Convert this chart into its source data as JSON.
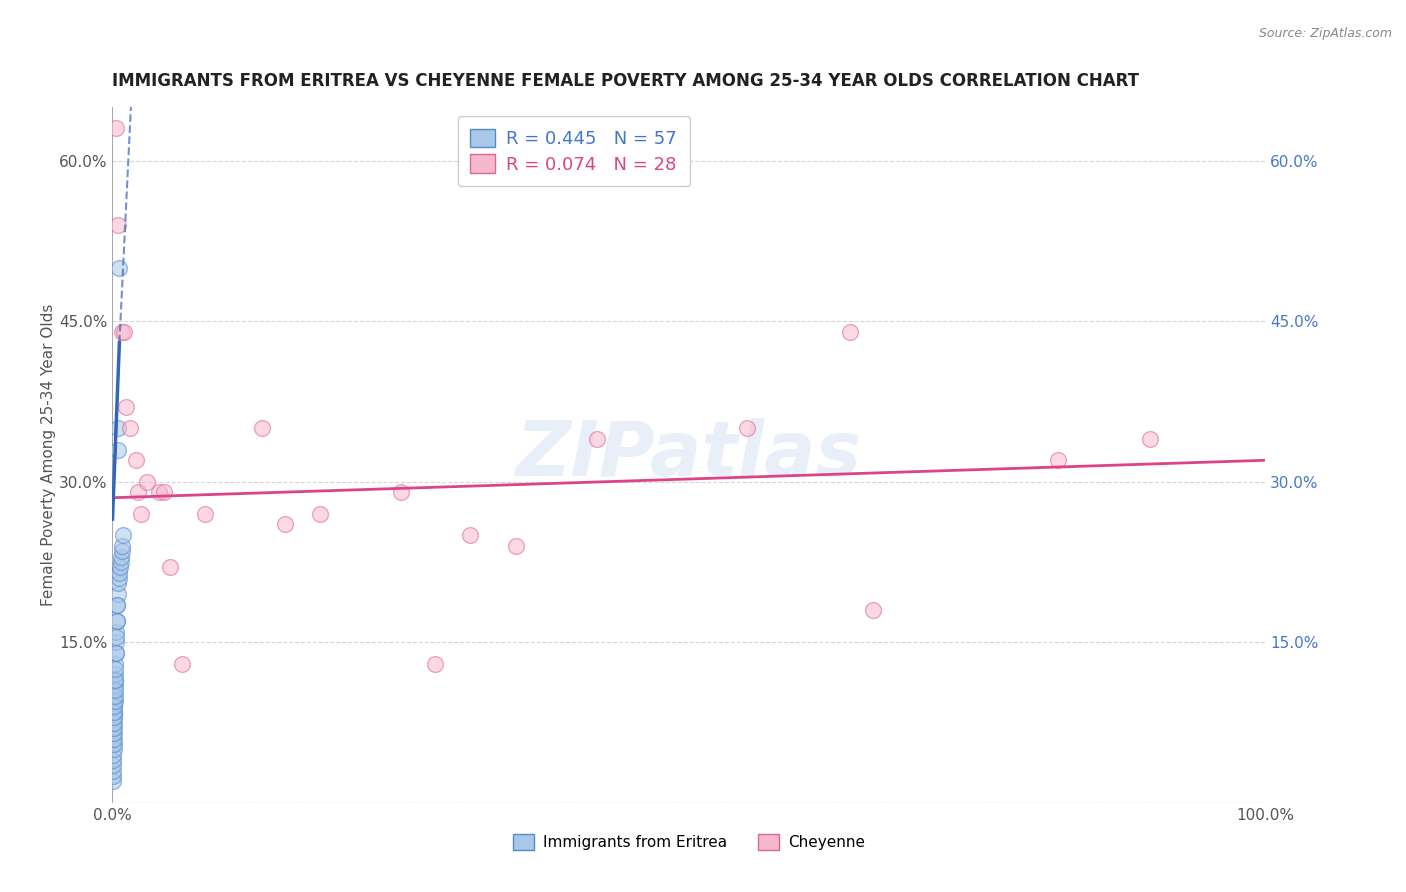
{
  "title": "IMMIGRANTS FROM ERITREA VS CHEYENNE FEMALE POVERTY AMONG 25-34 YEAR OLDS CORRELATION CHART",
  "source": "Source: ZipAtlas.com",
  "ylabel": "Female Poverty Among 25-34 Year Olds",
  "xlim": [
    0,
    1.0
  ],
  "ylim": [
    0,
    0.65
  ],
  "y_ticks": [
    0.0,
    0.15,
    0.3,
    0.45,
    0.6
  ],
  "y_tick_labels": [
    "",
    "15.0%",
    "30.0%",
    "45.0%",
    "60.0%"
  ],
  "x_ticks": [
    0.0,
    0.2,
    0.4,
    0.6,
    0.8,
    1.0
  ],
  "x_tick_labels": [
    "0.0%",
    "",
    "",
    "",
    "",
    "100.0%"
  ],
  "watermark": "ZIPatlas",
  "legend_blue_R": "0.445",
  "legend_blue_N": "57",
  "legend_pink_R": "0.074",
  "legend_pink_N": "28",
  "legend_label_blue": "Immigrants from Eritrea",
  "legend_label_pink": "Cheyenne",
  "blue_color": "#a8c8e8",
  "pink_color": "#f8b8cc",
  "blue_edge_color": "#5588cc",
  "pink_edge_color": "#dd6699",
  "blue_line_color": "#3366bb",
  "pink_line_color": "#dd4488",
  "blue_scatter_x": [
    0.0004,
    0.0005,
    0.0006,
    0.0007,
    0.0008,
    0.0009,
    0.001,
    0.0012,
    0.0014,
    0.0015,
    0.0016,
    0.0018,
    0.002,
    0.0022,
    0.0025,
    0.0028,
    0.003,
    0.0032,
    0.0035,
    0.004,
    0.0045,
    0.005,
    0.0055,
    0.006,
    0.0065,
    0.007,
    0.0075,
    0.008,
    0.0085,
    0.009,
    0.0003,
    0.0004,
    0.0005,
    0.0006,
    0.0007,
    0.0008,
    0.0009,
    0.001,
    0.0011,
    0.0012,
    0.0013,
    0.0014,
    0.0015,
    0.0016,
    0.0017,
    0.0018,
    0.0019,
    0.002,
    0.0022,
    0.0025,
    0.0028,
    0.0032,
    0.0036,
    0.004,
    0.0045,
    0.005,
    0.006
  ],
  "blue_scatter_y": [
    0.055,
    0.06,
    0.065,
    0.07,
    0.075,
    0.08,
    0.085,
    0.09,
    0.095,
    0.1,
    0.105,
    0.11,
    0.115,
    0.12,
    0.13,
    0.14,
    0.15,
    0.16,
    0.17,
    0.185,
    0.195,
    0.205,
    0.21,
    0.215,
    0.22,
    0.225,
    0.23,
    0.235,
    0.24,
    0.25,
    0.02,
    0.025,
    0.03,
    0.035,
    0.04,
    0.045,
    0.05,
    0.055,
    0.06,
    0.065,
    0.07,
    0.075,
    0.08,
    0.085,
    0.09,
    0.095,
    0.1,
    0.105,
    0.115,
    0.125,
    0.14,
    0.155,
    0.17,
    0.185,
    0.33,
    0.35,
    0.5
  ],
  "pink_scatter_x": [
    0.003,
    0.005,
    0.008,
    0.01,
    0.012,
    0.015,
    0.02,
    0.022,
    0.025,
    0.03,
    0.04,
    0.045,
    0.05,
    0.06,
    0.08,
    0.13,
    0.15,
    0.18,
    0.25,
    0.28,
    0.31,
    0.35,
    0.42,
    0.55,
    0.64,
    0.66,
    0.82,
    0.9
  ],
  "pink_scatter_y": [
    0.63,
    0.54,
    0.44,
    0.44,
    0.37,
    0.35,
    0.32,
    0.29,
    0.27,
    0.3,
    0.29,
    0.29,
    0.22,
    0.13,
    0.27,
    0.35,
    0.26,
    0.27,
    0.29,
    0.13,
    0.25,
    0.24,
    0.34,
    0.35,
    0.44,
    0.18,
    0.32,
    0.34
  ],
  "pink_trend_x": [
    0.0,
    1.0
  ],
  "pink_trend_y": [
    0.285,
    0.32
  ],
  "blue_solid_trend_x": [
    0.0,
    0.006
  ],
  "blue_solid_trend_y": [
    0.265,
    0.43
  ],
  "blue_dash_trend_x": [
    0.006,
    0.016
  ],
  "blue_dash_trend_y": [
    0.43,
    0.65
  ]
}
